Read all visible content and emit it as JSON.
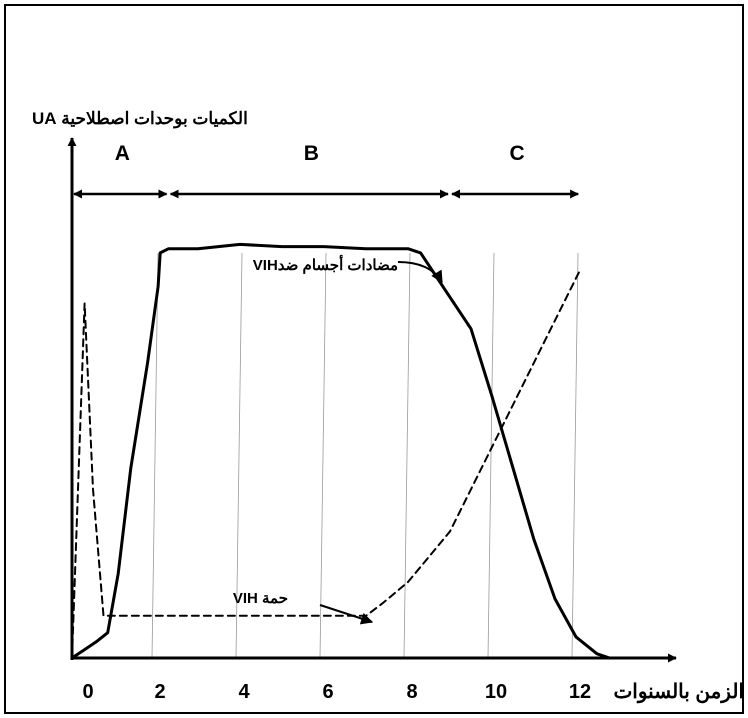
{
  "chart_data": {
    "type": "line",
    "ylabel": "الكميات بوحدات اصطلاحية UA",
    "xlabel": "الزمن بالسنوات",
    "x_ticks": [
      "0",
      "2",
      "4",
      "6",
      "8",
      "10",
      "12"
    ],
    "xlim": [
      0,
      13
    ],
    "ylim": [
      0,
      100
    ],
    "grid": "vertical",
    "legend": "none",
    "phases": [
      {
        "label": "A",
        "start": 0,
        "end": 2.3
      },
      {
        "label": "B",
        "start": 2.3,
        "end": 9
      },
      {
        "label": "C",
        "start": 9,
        "end": 12.1
      }
    ],
    "series": [
      {
        "name": "مضادات أجسام ضدVIH",
        "style": "solid",
        "points": [
          [
            0,
            0
          ],
          [
            0.3,
            2
          ],
          [
            0.6,
            4
          ],
          [
            0.85,
            6
          ],
          [
            1.1,
            20
          ],
          [
            1.4,
            45
          ],
          [
            1.8,
            70
          ],
          [
            2.05,
            88
          ],
          [
            2.1,
            96
          ],
          [
            2.3,
            97
          ],
          [
            3,
            97
          ],
          [
            4,
            98
          ],
          [
            5,
            97.5
          ],
          [
            6,
            97.5
          ],
          [
            7,
            97
          ],
          [
            8,
            97
          ],
          [
            8.3,
            96
          ],
          [
            8.9,
            87
          ],
          [
            9.5,
            78
          ],
          [
            10,
            62
          ],
          [
            10.5,
            45
          ],
          [
            11,
            28
          ],
          [
            11.5,
            14
          ],
          [
            12,
            5
          ],
          [
            12.5,
            1
          ],
          [
            12.8,
            0
          ]
        ]
      },
      {
        "name": "حمة VIH",
        "style": "dashed",
        "points": [
          [
            0,
            0
          ],
          [
            0.3,
            84
          ],
          [
            0.5,
            40
          ],
          [
            0.75,
            10
          ],
          [
            1.5,
            10
          ],
          [
            3,
            10
          ],
          [
            5,
            10
          ],
          [
            7,
            10
          ],
          [
            7.4,
            13
          ],
          [
            8,
            18
          ],
          [
            9,
            30
          ],
          [
            10,
            50
          ],
          [
            11,
            70
          ],
          [
            12,
            90
          ],
          [
            12.1,
            92
          ]
        ]
      }
    ],
    "annotations": [
      {
        "text": "مضادات أجسام ضدVIH",
        "points_to": "solid"
      },
      {
        "text": "حمة VIH",
        "points_to": "dashed"
      }
    ],
    "colors": {
      "line": "#000000",
      "grid": "#999999"
    }
  }
}
